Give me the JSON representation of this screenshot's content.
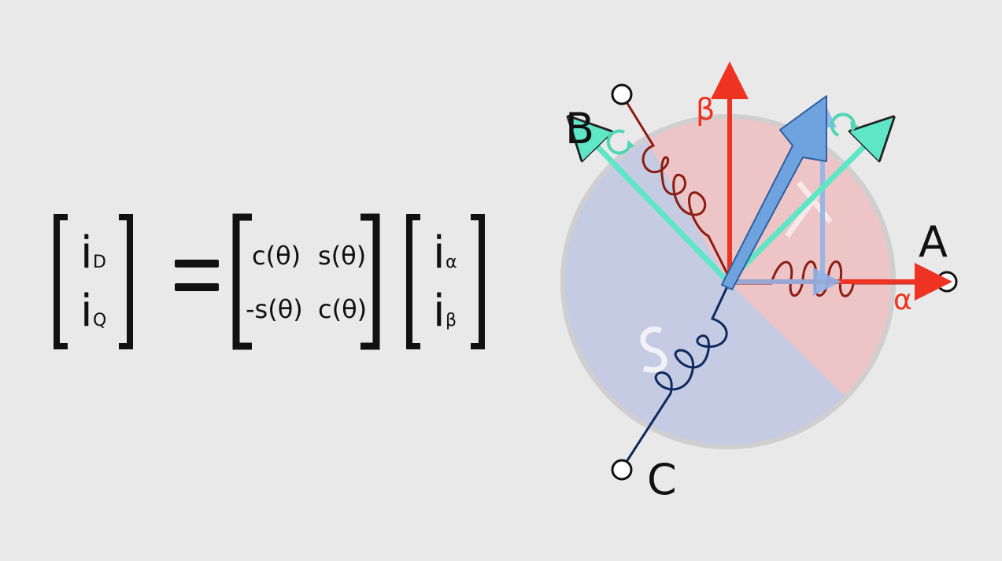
{
  "equation": {
    "lhs": [
      {
        "main": "i",
        "sub": "D"
      },
      {
        "main": "i",
        "sub": "Q"
      }
    ],
    "equals": "=",
    "matrix": [
      [
        "c(θ)",
        "s(θ)"
      ],
      [
        "-s(θ)",
        "c(θ)"
      ]
    ],
    "rhs": [
      {
        "main": "i",
        "sub": "α"
      },
      {
        "main": "i",
        "sub": "β"
      }
    ]
  },
  "diagram": {
    "phase_labels": {
      "a": "A",
      "b": "B",
      "c": "C"
    },
    "axis_labels": {
      "alpha": "α",
      "beta": "β"
    },
    "colors": {
      "background": "#e9e9e9",
      "red_sector": "#f0c4c4",
      "blue_sector": "#c5cbe3",
      "alpha_beta_axes": "#ee3322",
      "dq_axes": "#5ee6c6",
      "current_vector": "#6fa3e0",
      "coil_phase_a_b": "#8b1d12",
      "coil_phase_c": "#0f2a5e"
    }
  }
}
